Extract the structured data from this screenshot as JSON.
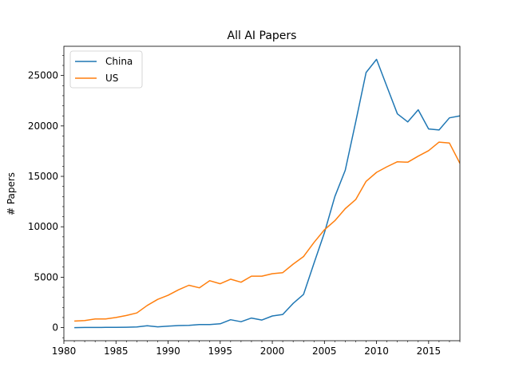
{
  "chart_data": {
    "type": "line",
    "title": "All AI Papers",
    "xlabel": "",
    "ylabel": "# Papers",
    "xlim": [
      1980,
      2018
    ],
    "ylim": [
      -1300,
      27900
    ],
    "xticks": [
      1980,
      1985,
      1990,
      1995,
      2000,
      2005,
      2010,
      2015
    ],
    "yticks": [
      0,
      5000,
      10000,
      15000,
      20000,
      25000
    ],
    "grid": false,
    "legend": "top-left",
    "x": [
      1981,
      1982,
      1983,
      1984,
      1985,
      1986,
      1987,
      1988,
      1989,
      1990,
      1991,
      1992,
      1993,
      1994,
      1995,
      1996,
      1997,
      1998,
      1999,
      2000,
      2001,
      2002,
      2003,
      2004,
      2005,
      2006,
      2007,
      2008,
      2009,
      2010,
      2011,
      2012,
      2013,
      2014,
      2015,
      2016,
      2017,
      2018
    ],
    "series": [
      {
        "name": "China",
        "color": "#1f77b4",
        "values": [
          0,
          10,
          15,
          20,
          30,
          40,
          60,
          180,
          80,
          140,
          200,
          220,
          300,
          300,
          380,
          780,
          580,
          950,
          750,
          1150,
          1300,
          2400,
          3300,
          6400,
          9400,
          13000,
          15600,
          20400,
          25300,
          26600,
          23900,
          21200,
          20400,
          21600,
          19700,
          19600,
          20800,
          21000
        ]
      },
      {
        "name": "US",
        "color": "#ff7f0e",
        "values": [
          650,
          700,
          850,
          850,
          1000,
          1200,
          1450,
          2200,
          2800,
          3200,
          3750,
          4200,
          3950,
          4650,
          4350,
          4800,
          4500,
          5100,
          5100,
          5350,
          5450,
          6300,
          7050,
          8450,
          9700,
          10600,
          11800,
          12700,
          14500,
          15400,
          15950,
          16450,
          16400,
          17000,
          17550,
          18400,
          18300,
          16300
        ]
      }
    ]
  }
}
